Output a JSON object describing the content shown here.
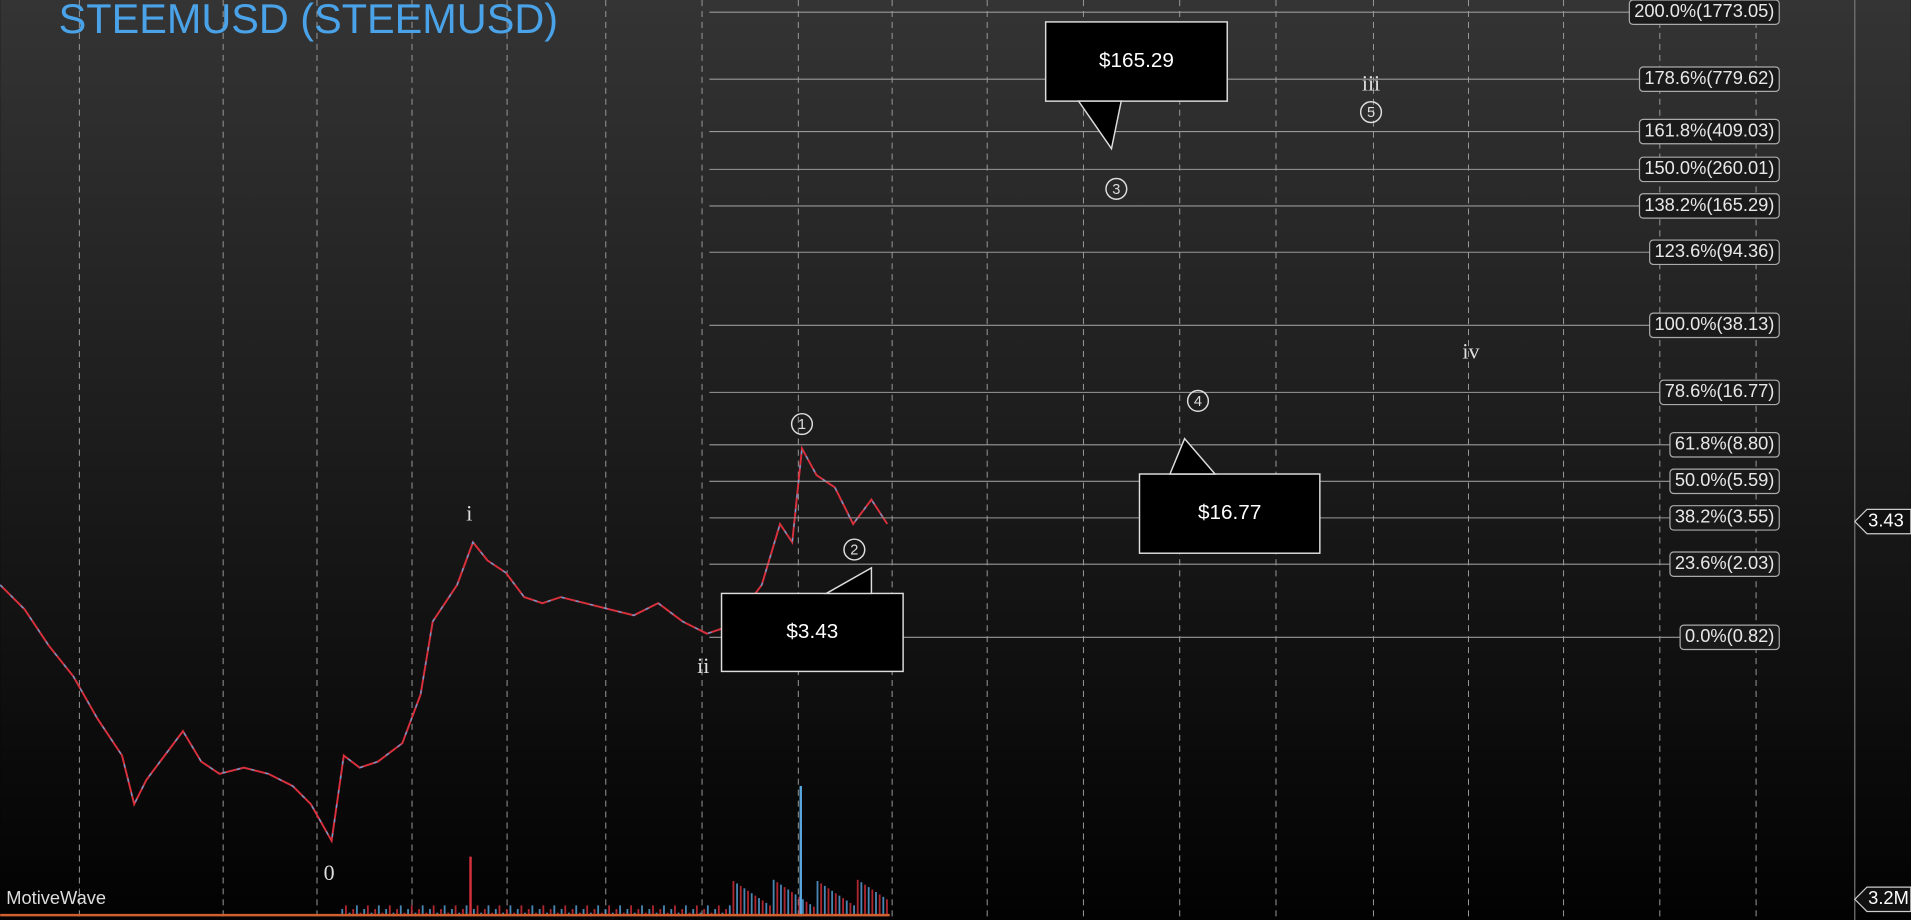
{
  "header": {
    "title": "STEEMUSD (STEEMUSD)"
  },
  "fib_levels": [
    "200.0%(1773.05)",
    "178.6%(779.62)",
    "161.8%(409.03)",
    "150.0%(260.01)",
    "138.2%(165.29)",
    "123.6%(94.36)",
    "100.0%(38.13)",
    "78.6%(16.77)",
    "61.8%(8.80)",
    "50.0%(5.59)",
    "38.2%(3.55)",
    "23.6%(2.03)",
    "0.0%(0.82)"
  ],
  "callouts": [
    "$165.29",
    "$16.77",
    "$3.43"
  ],
  "wave_labels": [
    "0",
    "i",
    "ii",
    "iii",
    "iv"
  ],
  "circled_waves": [
    "1",
    "2",
    "3",
    "4",
    "5"
  ],
  "price_tag": "3.43",
  "volume_tag": "3.2M",
  "watermark": "MotiveWave"
}
